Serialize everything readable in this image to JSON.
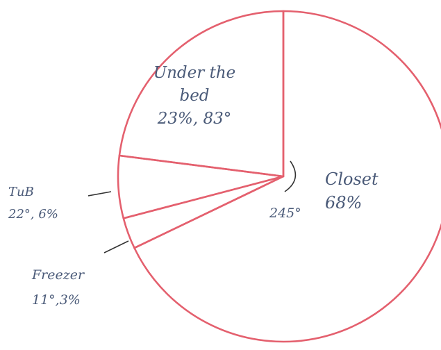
{
  "chart_data": {
    "type": "pie",
    "title": "",
    "slices": [
      {
        "label": "Closet",
        "percent": 68,
        "degrees": 245,
        "label_lines": [
          "Closet",
          "68%"
        ]
      },
      {
        "label": "Under the bed",
        "percent": 23,
        "degrees": 83,
        "label_lines": [
          "Under the",
          "bed",
          "23%, 83°"
        ]
      },
      {
        "label": "Tub",
        "percent": 6,
        "degrees": 22,
        "label_lines": [
          "TuB",
          "22°, 6%"
        ]
      },
      {
        "label": "Freezer",
        "percent": 3,
        "degrees": 11,
        "label_lines": [
          "Freezer",
          "11°,3%"
        ]
      }
    ],
    "angle_annotation": "245°",
    "colors": {
      "outline": "#e4606e",
      "text": "#4a5a78"
    }
  }
}
